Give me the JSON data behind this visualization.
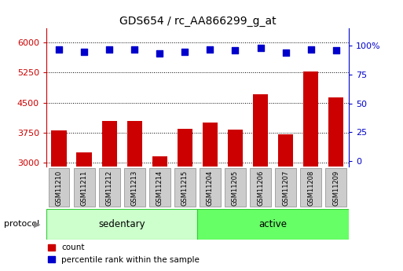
{
  "title": "GDS654 / rc_AA866299_g_at",
  "samples": [
    "GSM11210",
    "GSM11211",
    "GSM11212",
    "GSM11213",
    "GSM11214",
    "GSM11215",
    "GSM11204",
    "GSM11205",
    "GSM11206",
    "GSM11207",
    "GSM11208",
    "GSM11209"
  ],
  "counts": [
    3800,
    3250,
    4050,
    4050,
    3150,
    3850,
    4000,
    3820,
    4700,
    3700,
    5280,
    4620
  ],
  "percentile_ranks": [
    97,
    95,
    97,
    97,
    93,
    95,
    97,
    96,
    98,
    94,
    97,
    96
  ],
  "groups": [
    {
      "name": "sedentary",
      "start": 0,
      "end": 6
    },
    {
      "name": "active",
      "start": 6,
      "end": 12
    }
  ],
  "ylim_left": [
    2900,
    6350
  ],
  "ylim_right": [
    -5,
    115
  ],
  "yticks_left": [
    3000,
    3750,
    4500,
    5250,
    6000
  ],
  "yticks_right": [
    0,
    25,
    50,
    75,
    100
  ],
  "bar_color": "#cc0000",
  "dot_color": "#0000cc",
  "sedentary_color": "#ccffcc",
  "active_color": "#66ff66",
  "label_bg_color": "#cccccc",
  "grid_color": "#000000",
  "left_axis_color": "#cc0000",
  "right_axis_color": "#0000cc",
  "legend_count_label": "count",
  "legend_percentile_label": "percentile rank within the sample",
  "protocol_label": "protocol",
  "bar_width": 0.6,
  "dot_size": 35,
  "bar_bottom": 2900
}
